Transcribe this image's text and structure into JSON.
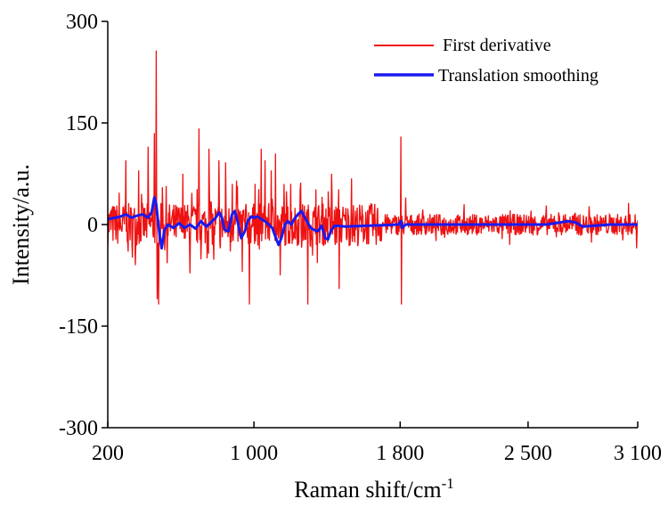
{
  "chart_data": {
    "type": "line",
    "title": "",
    "xlabel": "Raman shift/cm",
    "xlabel_superscript": "-1",
    "ylabel": "Intensity/a.u.",
    "xlim": [
      200,
      3100
    ],
    "ylim": [
      -300,
      300
    ],
    "x_ticks": [
      200,
      1000,
      1800,
      2500,
      3100
    ],
    "x_tick_labels": [
      "200",
      "1 000",
      "1 800",
      "2 500",
      "3 100"
    ],
    "y_ticks": [
      300,
      150,
      0,
      -150,
      -300
    ],
    "y_tick_labels": [
      "300",
      "150",
      "0",
      "-150",
      "-300"
    ],
    "grid": false,
    "legend_position": "top-right",
    "series": [
      {
        "name": "First derivative",
        "color": "#ee1111",
        "style": "noisy",
        "noise_regions": [
          {
            "from": 200,
            "to": 1700,
            "amplitude": 32
          },
          {
            "from": 1700,
            "to": 3100,
            "amplitude": 16
          }
        ],
        "spikes": [
          {
            "x": 465,
            "y": 257
          },
          {
            "x": 470,
            "y": -110
          },
          {
            "x": 478,
            "y": -118
          },
          {
            "x": 420,
            "y": 115
          },
          {
            "x": 455,
            "y": 135
          },
          {
            "x": 370,
            "y": 80
          },
          {
            "x": 300,
            "y": 95
          },
          {
            "x": 350,
            "y": -60
          },
          {
            "x": 500,
            "y": 55
          },
          {
            "x": 700,
            "y": 142
          },
          {
            "x": 755,
            "y": 112
          },
          {
            "x": 610,
            "y": 75
          },
          {
            "x": 650,
            "y": -72
          },
          {
            "x": 780,
            "y": -52
          },
          {
            "x": 808,
            "y": 95
          },
          {
            "x": 845,
            "y": 92
          },
          {
            "x": 880,
            "y": 60
          },
          {
            "x": 905,
            "y": 65
          },
          {
            "x": 935,
            "y": -70
          },
          {
            "x": 975,
            "y": -118
          },
          {
            "x": 1005,
            "y": 60
          },
          {
            "x": 1040,
            "y": 112
          },
          {
            "x": 1060,
            "y": 95
          },
          {
            "x": 1095,
            "y": 80
          },
          {
            "x": 1118,
            "y": 105
          },
          {
            "x": 1145,
            "y": -75
          },
          {
            "x": 1165,
            "y": 60
          },
          {
            "x": 1200,
            "y": 60
          },
          {
            "x": 1255,
            "y": 62
          },
          {
            "x": 1295,
            "y": -118
          },
          {
            "x": 1340,
            "y": 52
          },
          {
            "x": 1425,
            "y": 75
          },
          {
            "x": 1465,
            "y": -95
          },
          {
            "x": 1535,
            "y": 68
          },
          {
            "x": 1803,
            "y": 130
          },
          {
            "x": 1808,
            "y": -118
          },
          {
            "x": 1830,
            "y": 40
          },
          {
            "x": 2150,
            "y": 30
          },
          {
            "x": 2400,
            "y": -30
          },
          {
            "x": 2600,
            "y": 28
          },
          {
            "x": 3050,
            "y": 32
          },
          {
            "x": 3095,
            "y": -35
          }
        ]
      },
      {
        "name": "Translation smoothing",
        "color": "#1a1aee",
        "points": [
          [
            200,
            8
          ],
          [
            240,
            10
          ],
          [
            270,
            12
          ],
          [
            300,
            15
          ],
          [
            330,
            10
          ],
          [
            360,
            13
          ],
          [
            390,
            15
          ],
          [
            420,
            10
          ],
          [
            440,
            18
          ],
          [
            455,
            40
          ],
          [
            465,
            30
          ],
          [
            475,
            5
          ],
          [
            485,
            -18
          ],
          [
            495,
            -35
          ],
          [
            510,
            -8
          ],
          [
            530,
            0
          ],
          [
            560,
            -5
          ],
          [
            590,
            2
          ],
          [
            620,
            -5
          ],
          [
            650,
            0
          ],
          [
            680,
            -6
          ],
          [
            710,
            5
          ],
          [
            740,
            -3
          ],
          [
            760,
            2
          ],
          [
            790,
            10
          ],
          [
            810,
            18
          ],
          [
            825,
            10
          ],
          [
            840,
            -8
          ],
          [
            860,
            -10
          ],
          [
            880,
            15
          ],
          [
            895,
            20
          ],
          [
            910,
            5
          ],
          [
            930,
            -20
          ],
          [
            950,
            -10
          ],
          [
            965,
            5
          ],
          [
            985,
            12
          ],
          [
            1000,
            10
          ],
          [
            1020,
            12
          ],
          [
            1040,
            8
          ],
          [
            1060,
            5
          ],
          [
            1080,
            0
          ],
          [
            1100,
            -5
          ],
          [
            1120,
            -20
          ],
          [
            1135,
            -30
          ],
          [
            1150,
            -20
          ],
          [
            1170,
            0
          ],
          [
            1185,
            5
          ],
          [
            1205,
            0
          ],
          [
            1220,
            8
          ],
          [
            1240,
            15
          ],
          [
            1260,
            20
          ],
          [
            1275,
            12
          ],
          [
            1290,
            5
          ],
          [
            1310,
            -5
          ],
          [
            1330,
            -8
          ],
          [
            1350,
            -10
          ],
          [
            1370,
            -2
          ],
          [
            1390,
            -20
          ],
          [
            1405,
            -22
          ],
          [
            1420,
            -10
          ],
          [
            1440,
            -2
          ],
          [
            1460,
            -2
          ],
          [
            1500,
            -3
          ],
          [
            1600,
            -2
          ],
          [
            1700,
            -1
          ],
          [
            1790,
            0
          ],
          [
            1805,
            5
          ],
          [
            1810,
            -5
          ],
          [
            1830,
            0
          ],
          [
            2000,
            0
          ],
          [
            2200,
            0
          ],
          [
            2400,
            0
          ],
          [
            2500,
            0
          ],
          [
            2600,
            0
          ],
          [
            2650,
            2
          ],
          [
            2720,
            5
          ],
          [
            2760,
            3
          ],
          [
            2800,
            -3
          ],
          [
            2850,
            -2
          ],
          [
            2950,
            0
          ],
          [
            3100,
            0
          ]
        ]
      }
    ]
  }
}
